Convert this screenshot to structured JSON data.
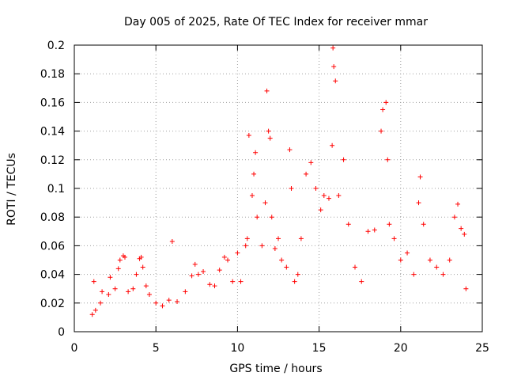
{
  "chart_data": {
    "type": "scatter",
    "title": "Day 005 of 2025, Rate Of TEC Index for receiver mmar",
    "xlabel": "GPS time / hours",
    "ylabel": "ROTI / TECUs",
    "xlim": [
      0,
      25
    ],
    "ylim": [
      0,
      0.2
    ],
    "xticks": [
      0,
      5,
      10,
      15,
      20,
      25
    ],
    "yticks": [
      0,
      0.02,
      0.04,
      0.06,
      0.08,
      0.1,
      0.12,
      0.14,
      0.16,
      0.18,
      0.2
    ],
    "xtick_labels": [
      "0",
      "5",
      "10",
      "15",
      "20",
      "25"
    ],
    "ytick_labels": [
      "0",
      "0.02",
      "0.04",
      "0.06",
      "0.08",
      "0.1",
      "0.12",
      "0.14",
      "0.16",
      "0.18",
      "0.2"
    ],
    "grid": true,
    "marker": "+",
    "color": "#ff0000",
    "series": [
      {
        "name": "ROTI",
        "points": [
          [
            1.1,
            0.012
          ],
          [
            1.2,
            0.035
          ],
          [
            1.3,
            0.015
          ],
          [
            1.6,
            0.02
          ],
          [
            1.7,
            0.028
          ],
          [
            2.1,
            0.026
          ],
          [
            2.2,
            0.038
          ],
          [
            2.5,
            0.03
          ],
          [
            2.7,
            0.044
          ],
          [
            2.8,
            0.05
          ],
          [
            3.0,
            0.053
          ],
          [
            3.1,
            0.052
          ],
          [
            3.3,
            0.028
          ],
          [
            3.6,
            0.03
          ],
          [
            3.8,
            0.04
          ],
          [
            4.0,
            0.051
          ],
          [
            4.1,
            0.052
          ],
          [
            4.2,
            0.045
          ],
          [
            4.4,
            0.032
          ],
          [
            4.6,
            0.026
          ],
          [
            5.0,
            0.02
          ],
          [
            5.4,
            0.018
          ],
          [
            5.8,
            0.022
          ],
          [
            6.0,
            0.063
          ],
          [
            6.3,
            0.021
          ],
          [
            6.8,
            0.028
          ],
          [
            7.2,
            0.039
          ],
          [
            7.4,
            0.047
          ],
          [
            7.6,
            0.04
          ],
          [
            7.9,
            0.042
          ],
          [
            8.3,
            0.033
          ],
          [
            8.6,
            0.032
          ],
          [
            8.9,
            0.043
          ],
          [
            9.2,
            0.052
          ],
          [
            9.4,
            0.05
          ],
          [
            9.7,
            0.035
          ],
          [
            10.0,
            0.055
          ],
          [
            10.2,
            0.035
          ],
          [
            10.5,
            0.06
          ],
          [
            10.6,
            0.065
          ],
          [
            10.7,
            0.137
          ],
          [
            10.9,
            0.095
          ],
          [
            11.0,
            0.11
          ],
          [
            11.1,
            0.125
          ],
          [
            11.2,
            0.08
          ],
          [
            11.5,
            0.06
          ],
          [
            11.7,
            0.09
          ],
          [
            11.8,
            0.168
          ],
          [
            11.9,
            0.14
          ],
          [
            12.0,
            0.135
          ],
          [
            12.1,
            0.08
          ],
          [
            12.3,
            0.058
          ],
          [
            12.5,
            0.065
          ],
          [
            12.7,
            0.05
          ],
          [
            13.0,
            0.045
          ],
          [
            13.2,
            0.127
          ],
          [
            13.3,
            0.1
          ],
          [
            13.5,
            0.035
          ],
          [
            13.7,
            0.04
          ],
          [
            13.9,
            0.065
          ],
          [
            14.2,
            0.11
          ],
          [
            14.5,
            0.118
          ],
          [
            14.8,
            0.1
          ],
          [
            15.1,
            0.085
          ],
          [
            15.3,
            0.095
          ],
          [
            15.6,
            0.093
          ],
          [
            15.8,
            0.13
          ],
          [
            15.85,
            0.198
          ],
          [
            15.9,
            0.185
          ],
          [
            16.0,
            0.175
          ],
          [
            16.2,
            0.095
          ],
          [
            16.5,
            0.12
          ],
          [
            16.8,
            0.075
          ],
          [
            17.2,
            0.045
          ],
          [
            17.6,
            0.035
          ],
          [
            18.0,
            0.07
          ],
          [
            18.4,
            0.071
          ],
          [
            18.8,
            0.14
          ],
          [
            18.9,
            0.155
          ],
          [
            19.1,
            0.16
          ],
          [
            19.2,
            0.12
          ],
          [
            19.3,
            0.075
          ],
          [
            19.6,
            0.065
          ],
          [
            20.0,
            0.05
          ],
          [
            20.4,
            0.055
          ],
          [
            20.8,
            0.04
          ],
          [
            21.1,
            0.09
          ],
          [
            21.2,
            0.108
          ],
          [
            21.4,
            0.075
          ],
          [
            21.8,
            0.05
          ],
          [
            22.2,
            0.045
          ],
          [
            22.6,
            0.04
          ],
          [
            23.0,
            0.05
          ],
          [
            23.3,
            0.08
          ],
          [
            23.5,
            0.089
          ],
          [
            23.7,
            0.072
          ],
          [
            23.9,
            0.068
          ],
          [
            24.0,
            0.03
          ]
        ]
      }
    ]
  }
}
